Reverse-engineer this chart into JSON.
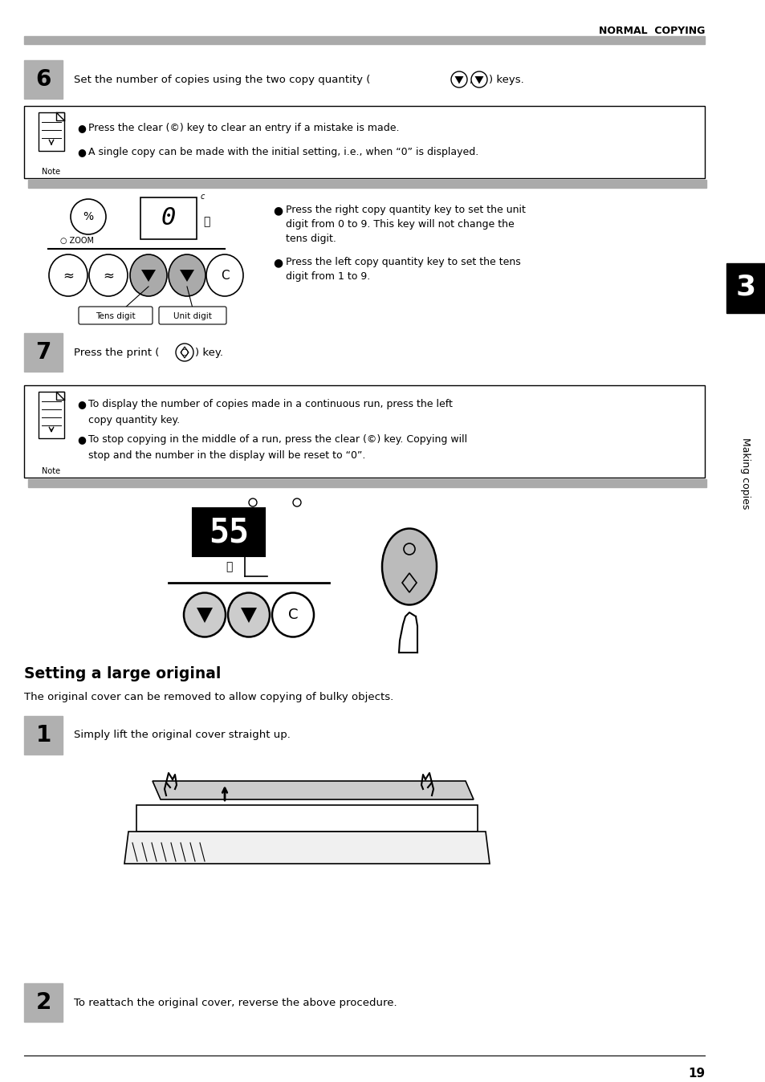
{
  "header_text": "NORMAL  COPYING",
  "bg_color": "#ffffff",
  "step6_num": "6",
  "step7_num": "7",
  "step1_num": "1",
  "step2_num": "2",
  "note1_b1": "Press the clear (",
  "note1_b1b": ") key to clear an entry if a mistake is made.",
  "note1_b2": "A single copy can be made with the initial setting, i.e., when “0” is displayed.",
  "step6_text_pre": "Set the number of copies using the two copy quantity (",
  "step6_text_post": ") keys.",
  "bullet_r1a": "Press the right copy quantity key to set the unit",
  "bullet_r1b": "digit from 0 to 9. This key will not change the",
  "bullet_r1c": "tens digit.",
  "bullet_r2a": "Press the left copy quantity key to set the tens",
  "bullet_r2b": "digit from 1 to 9.",
  "step7_text_pre": "Press the print (",
  "step7_text_post": ") key.",
  "note2_b1a": "To display the number of copies made in a continuous run, press the left",
  "note2_b1b": "copy quantity key.",
  "note2_b2a": "To stop copying in the middle of a run, press the clear (",
  "note2_b2b": ") key. Copying will",
  "note2_b2c": "stop and the number in the display will be reset to “0”.",
  "section_title": "Setting a large original",
  "section_desc": "The original cover can be removed to allow copying of bulky objects.",
  "step1_text": "Simply lift the original cover straight up.",
  "step2_text": "To reattach the original cover, reverse the above procedure.",
  "sidebar_text": "Making copies",
  "sidebar_num": "3",
  "page_num": "19",
  "gray_bar_color": "#aaaaaa",
  "step_box_color": "#b0b0b0",
  "sidebar_black": "#000000",
  "note_border": "#000000"
}
